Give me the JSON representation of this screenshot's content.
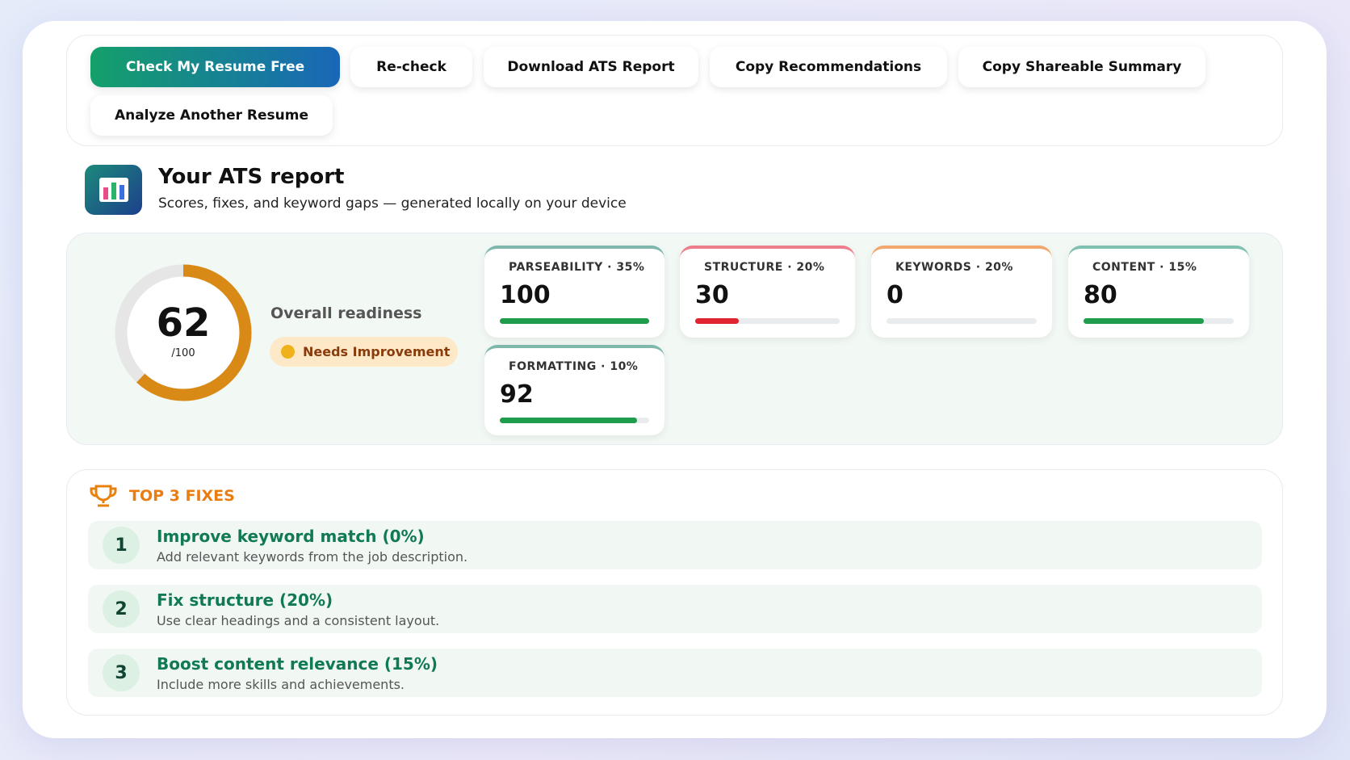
{
  "toolbar": {
    "buttons": [
      "Check My Resume Free",
      "Re-check",
      "Download ATS Report",
      "Copy Recommendations",
      "Copy Shareable Summary",
      "Analyze Another Resume"
    ]
  },
  "header": {
    "title": "Your ATS report",
    "subtitle": "Scores, fixes, and keyword gaps — generated locally on your device"
  },
  "overall": {
    "value": 62,
    "max": 100,
    "max_label": "/100",
    "caption": "Overall readiness",
    "status": "Needs Improvement",
    "color": "#d98a16"
  },
  "metrics": [
    {
      "label": "PARSEABILITY · 35%",
      "value": 100,
      "accent": "#7fb7ad",
      "bar_color": "#1f9d4c"
    },
    {
      "label": "STRUCTURE · 20%",
      "value": 30,
      "accent": "#ee7d8c",
      "bar_color": "#e0242f"
    },
    {
      "label": "KEYWORDS · 20%",
      "value": 0,
      "accent": "#f3a66b",
      "bar_color": "#e0242f"
    },
    {
      "label": "CONTENT · 15%",
      "value": 80,
      "accent": "#7fc0b0",
      "bar_color": "#1f9d4c"
    },
    {
      "label": "FORMATTING · 10%",
      "value": 92,
      "accent": "#7fb7ad",
      "bar_color": "#1f9d4c"
    }
  ],
  "fixes": {
    "title": "TOP 3 FIXES",
    "items": [
      {
        "number": "1",
        "title": "Improve keyword match (0%)",
        "description": "Add relevant keywords from the job description."
      },
      {
        "number": "2",
        "title": "Fix structure (20%)",
        "description": "Use clear headings and a consistent layout."
      },
      {
        "number": "3",
        "title": "Boost content relevance (15%)",
        "description": "Include more skills and achievements."
      }
    ]
  }
}
